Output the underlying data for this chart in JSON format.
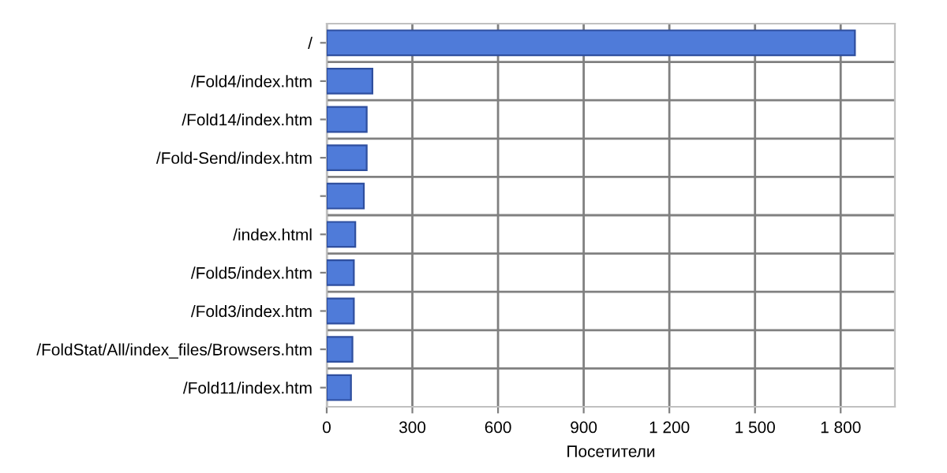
{
  "chart_data": {
    "type": "bar",
    "orientation": "horizontal",
    "xlabel": "Посетители",
    "categories": [
      "/",
      "/Fold4/index.htm",
      "/Fold14/index.htm",
      "/Fold-Send/index.htm",
      null,
      "/index.html",
      "/Fold5/index.htm",
      "/Fold3/index.htm",
      "/FoldStat/All/index_files/Browsers.htm",
      "/Fold11/index.htm"
    ],
    "values": [
      1850,
      160,
      140,
      140,
      130,
      100,
      95,
      95,
      90,
      85
    ],
    "color": "#4f7bd9",
    "xlim": [
      0,
      1990
    ],
    "xticks": [
      0,
      300,
      600,
      900,
      {
        "value": 1200,
        "label": "1 200"
      },
      {
        "value": 1500,
        "label": "1 500"
      },
      {
        "value": 1800,
        "label": "1 800"
      }
    ],
    "grid": true
  }
}
